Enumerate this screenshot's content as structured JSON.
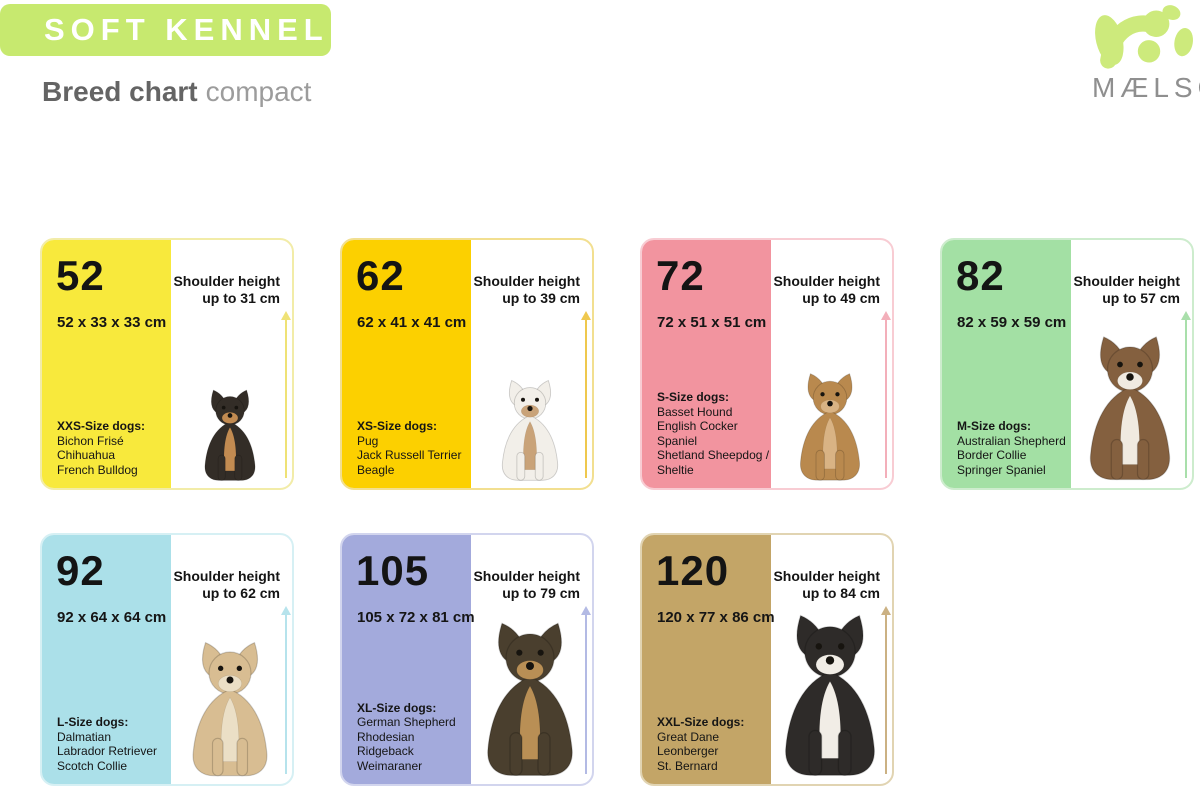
{
  "header": {
    "badge_label": "SOFT KENNEL",
    "badge_tm": "™",
    "title_bold": "Breed chart",
    "title_light": "compact",
    "brand": "MÆLSON",
    "colors": {
      "badge": "#C7E96F",
      "logo": "#CDEA7C",
      "title": "#646464",
      "subtitle": "#9C9C9C",
      "brand_text": "#8F8F8F"
    }
  },
  "cards": [
    {
      "number": "52",
      "dimensions": "52 x 33 x 33 cm",
      "shoulder_line1": "Shoulder height",
      "shoulder_line2": "up to 31 cm",
      "size_label": "XXS-Size dogs:",
      "breeds": [
        "Bichon Frisé",
        "Chihuahua",
        "French Bulldog"
      ],
      "dog_image": "chihuahua",
      "colors": {
        "fill": "#F8E93C",
        "tint": "#F2ECA8",
        "arrow": "#EFE276",
        "dogA": "#332D27",
        "dogB": "#C28B51"
      }
    },
    {
      "number": "62",
      "dimensions": "62 x 41 x 41 cm",
      "shoulder_line1": "Shoulder height",
      "shoulder_line2": "up to 39 cm",
      "size_label": "XS-Size dogs:",
      "breeds": [
        "Pug",
        "Jack Russell Terrier",
        "Beagle"
      ],
      "dog_image": "jack-russell-terrier",
      "colors": {
        "fill": "#FCD000",
        "tint": "#F2DF90",
        "arrow": "#EFC84E",
        "dogA": "#F2EFE9",
        "dogB": "#C9A379"
      }
    },
    {
      "number": "72",
      "dimensions": "72 x 51 x 51 cm",
      "shoulder_line1": "Shoulder height",
      "shoulder_line2": "up to 49 cm",
      "size_label": "S-Size dogs:",
      "breeds": [
        "Basset Hound",
        "English Cocker Spaniel",
        "Shetland Sheepdog /",
        "Sheltie"
      ],
      "dog_image": "english-cocker-spaniel",
      "colors": {
        "fill": "#F2949F",
        "tint": "#F8CCD3",
        "arrow": "#F3AFBA",
        "dogA": "#B9894E",
        "dogB": "#D9B384"
      }
    },
    {
      "number": "82",
      "dimensions": "82 x 59 x 59 cm",
      "shoulder_line1": "Shoulder height",
      "shoulder_line2": "up to 57 cm",
      "size_label": "M-Size dogs:",
      "breeds": [
        "Australian Shepherd",
        "Border Collie",
        "Springer Spaniel"
      ],
      "dog_image": "australian-shepherd",
      "colors": {
        "fill": "#A3E0A4",
        "tint": "#CDECCD",
        "arrow": "#A9DFAB",
        "dogA": "#84603F",
        "dogB": "#F0EAE0"
      }
    },
    {
      "number": "92",
      "dimensions": "92 x 64 x 64 cm",
      "shoulder_line1": "Shoulder height",
      "shoulder_line2": "up to 62 cm",
      "size_label": "L-Size dogs:",
      "breeds": [
        "Dalmatian",
        "Labrador Retriever",
        "Scotch Collie"
      ],
      "dog_image": "labrador-retriever",
      "colors": {
        "fill": "#ABE0E9",
        "tint": "#D6F0F4",
        "arrow": "#B6E3EC",
        "dogA": "#D8BD92",
        "dogB": "#EBDfC6"
      }
    },
    {
      "number": "105",
      "dimensions": "105 x 72 x 81 cm",
      "shoulder_line1": "Shoulder height",
      "shoulder_line2": "up to 79 cm",
      "size_label": "XL-Size dogs:",
      "breeds": [
        "German Shepherd",
        "Rhodesian Ridgeback",
        "Weimaraner"
      ],
      "dog_image": "german-shepherd",
      "colors": {
        "fill": "#A3AADC",
        "tint": "#D2D5EE",
        "arrow": "#B3BAE4",
        "dogA": "#4A3F2E",
        "dogB": "#B98F55"
      }
    },
    {
      "number": "120",
      "dimensions": "120 x 77 x 86 cm",
      "shoulder_line1": "Shoulder height",
      "shoulder_line2": "up to 84 cm",
      "size_label": "XXL-Size dogs:",
      "breeds": [
        "Great Dane",
        "Leonberger",
        "St. Bernard"
      ],
      "dog_image": "bernese-mountain-dog",
      "colors": {
        "fill": "#C3A567",
        "tint": "#E1D4B2",
        "arrow": "#CBB183",
        "dogA": "#2E2B29",
        "dogB": "#F1EDE6"
      }
    }
  ]
}
